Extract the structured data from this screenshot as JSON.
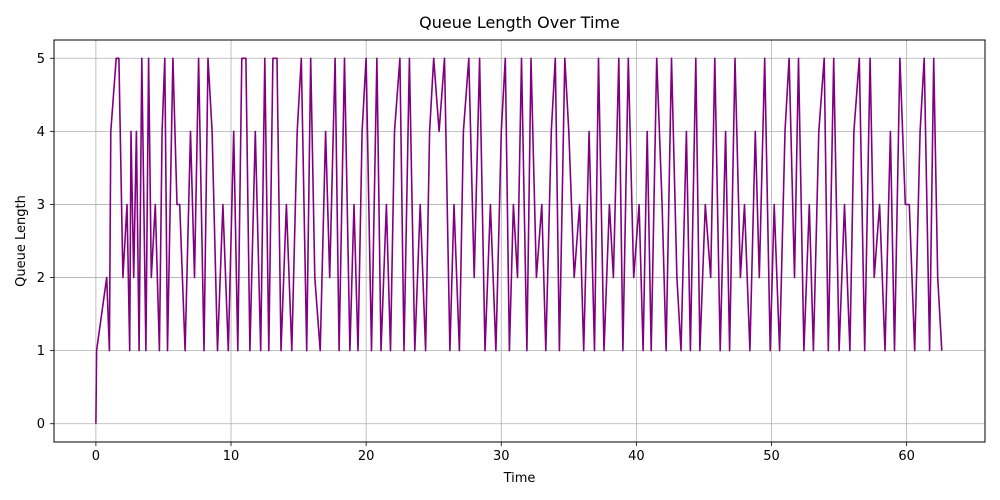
{
  "chart_data": {
    "type": "line",
    "title": "Queue Length Over Time",
    "xlabel": "Time",
    "ylabel": "Queue Length",
    "xlim": [
      -3.1,
      65.8
    ],
    "ylim": [
      -0.25,
      5.25
    ],
    "xticks": [
      0,
      10,
      20,
      30,
      40,
      50,
      60
    ],
    "yticks": [
      0,
      1,
      2,
      3,
      4,
      5
    ],
    "grid": true,
    "series": [
      {
        "color": "#800080",
        "x": [
          0.0,
          0.05,
          0.8,
          1.0,
          1.1,
          1.5,
          1.7,
          2.0,
          2.3,
          2.5,
          2.6,
          2.8,
          3.0,
          3.2,
          3.4,
          3.7,
          3.9,
          4.1,
          4.4,
          4.7,
          4.9,
          5.1,
          5.3,
          5.7,
          6.0,
          6.2,
          6.6,
          7.0,
          7.3,
          7.6,
          8.0,
          8.3,
          8.6,
          9.0,
          9.4,
          9.8,
          10.2,
          10.5,
          10.8,
          11.1,
          11.4,
          11.8,
          12.2,
          12.5,
          12.8,
          13.1,
          13.4,
          13.7,
          14.1,
          14.5,
          14.9,
          15.2,
          15.6,
          15.9,
          16.2,
          16.6,
          17.0,
          17.3,
          17.7,
          18.0,
          18.4,
          18.8,
          19.1,
          19.4,
          19.7,
          20.0,
          20.4,
          20.8,
          21.1,
          21.5,
          21.8,
          22.1,
          22.5,
          22.8,
          23.2,
          23.6,
          24.0,
          24.4,
          24.7,
          25.0,
          25.4,
          25.8,
          26.2,
          26.5,
          26.9,
          27.2,
          27.6,
          28.0,
          28.4,
          28.8,
          29.2,
          29.6,
          30.0,
          30.3,
          30.6,
          30.9,
          31.2,
          31.5,
          31.9,
          32.2,
          32.6,
          33.0,
          33.3,
          33.7,
          34.0,
          34.3,
          34.7,
          35.0,
          35.4,
          35.8,
          36.1,
          36.5,
          36.9,
          37.2,
          37.6,
          38.0,
          38.3,
          38.7,
          39.0,
          39.4,
          39.8,
          40.2,
          40.5,
          40.8,
          41.1,
          41.5,
          41.9,
          42.2,
          42.6,
          43.0,
          43.3,
          43.7,
          44.0,
          44.4,
          44.7,
          45.1,
          45.5,
          45.8,
          46.2,
          46.6,
          46.9,
          47.3,
          47.7,
          48.0,
          48.4,
          48.8,
          49.1,
          49.5,
          49.9,
          50.2,
          50.6,
          51.0,
          51.3,
          51.7,
          52.0,
          52.4,
          52.8,
          53.1,
          53.5,
          53.9,
          54.2,
          54.6,
          55.0,
          55.4,
          55.8,
          56.1,
          56.5,
          56.9,
          57.3,
          57.6,
          58.0,
          58.4,
          58.8,
          59.1,
          59.5,
          59.9,
          60.2,
          60.6,
          61.0,
          61.3,
          61.7,
          62.0,
          62.3,
          62.6
        ],
        "y": [
          0,
          1,
          2,
          1,
          4,
          5,
          5,
          2,
          3,
          1,
          4,
          2,
          4,
          1,
          5,
          1,
          5,
          2,
          3,
          1,
          4,
          5,
          1,
          5,
          3,
          3,
          1,
          4,
          2,
          5,
          1,
          5,
          4,
          1,
          3,
          1,
          4,
          1,
          5,
          5,
          1,
          4,
          1,
          5,
          1,
          5,
          5,
          1,
          3,
          1,
          4,
          5,
          1,
          5,
          2,
          1,
          4,
          2,
          5,
          1,
          5,
          1,
          3,
          1,
          4,
          5,
          1,
          5,
          1,
          3,
          1,
          4,
          5,
          1,
          5,
          1,
          3,
          1,
          4,
          5,
          4,
          5,
          1,
          3,
          1,
          4,
          5,
          2,
          5,
          1,
          3,
          1,
          4,
          5,
          1,
          3,
          2,
          5,
          1,
          5,
          2,
          3,
          1,
          4,
          5,
          1,
          5,
          4,
          2,
          3,
          1,
          4,
          1,
          5,
          1,
          3,
          2,
          5,
          1,
          5,
          2,
          3,
          1,
          4,
          1,
          5,
          3,
          1,
          5,
          2,
          1,
          4,
          1,
          5,
          1,
          3,
          2,
          5,
          1,
          4,
          1,
          5,
          2,
          3,
          1,
          4,
          2,
          5,
          1,
          3,
          1,
          4,
          5,
          2,
          5,
          1,
          3,
          1,
          4,
          5,
          1,
          5,
          1,
          3,
          1,
          4,
          5,
          1,
          5,
          2,
          3,
          1,
          4,
          1,
          5,
          3,
          3,
          1,
          4,
          5,
          1,
          5,
          2,
          1
        ]
      }
    ]
  }
}
